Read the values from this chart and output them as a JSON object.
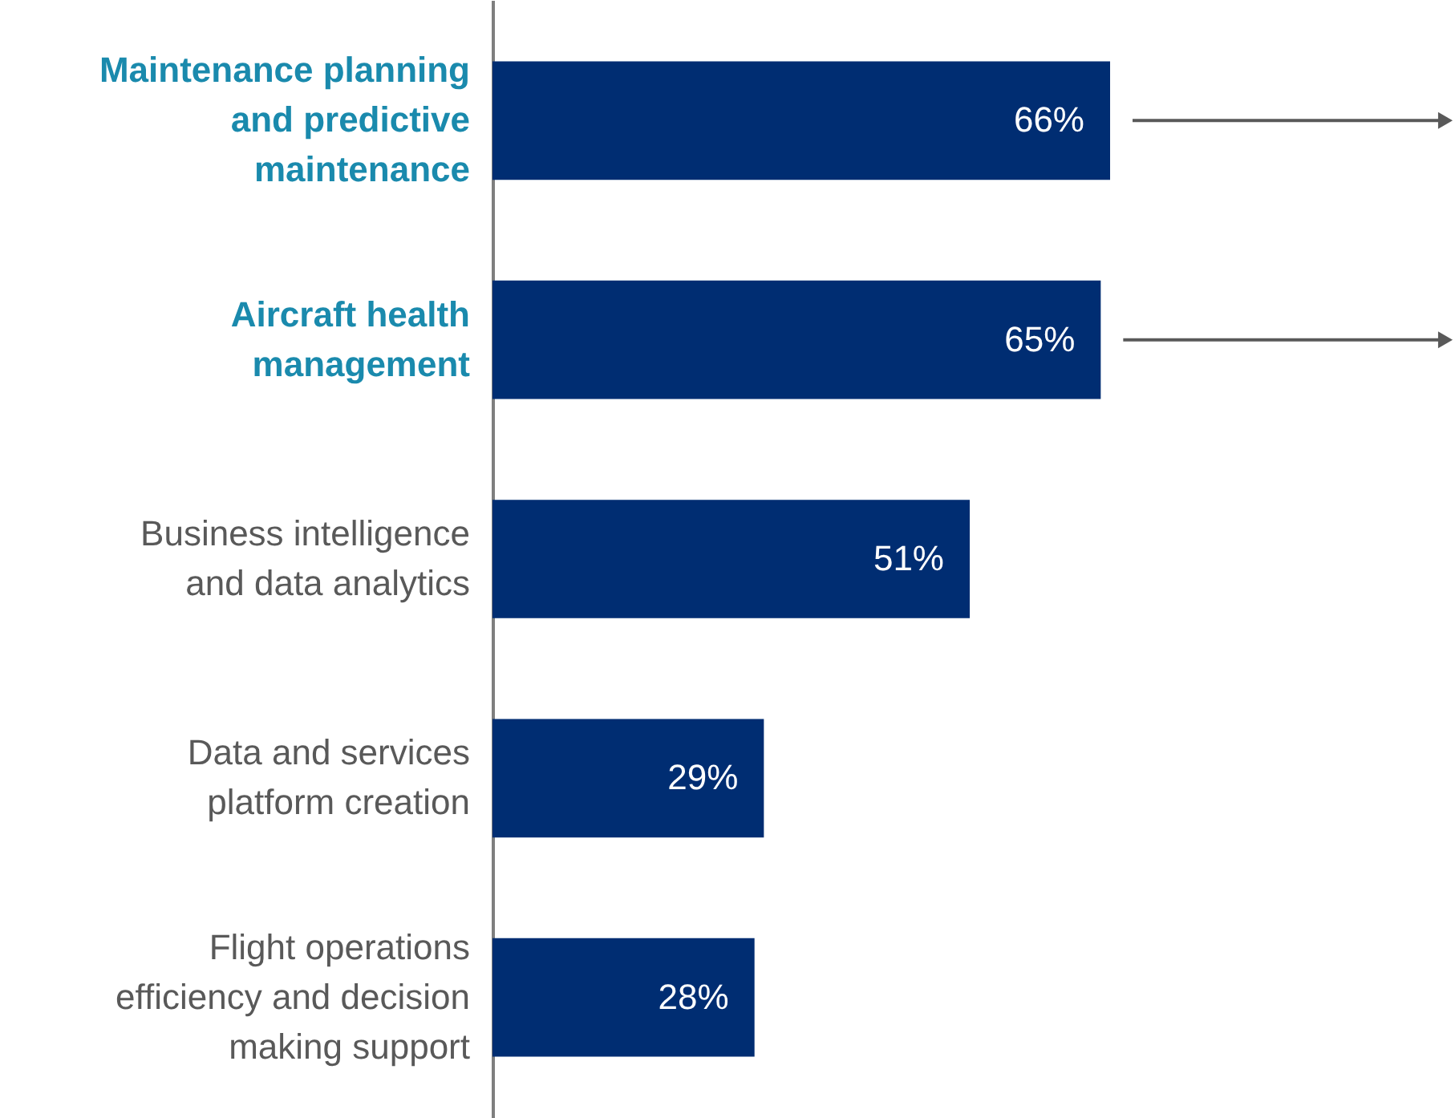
{
  "chart_data": {
    "type": "bar",
    "orientation": "horizontal",
    "categories": [
      "Maintenance planning and predictive maintenance",
      "Aircraft health management",
      "Business intelligence and data analytics",
      "Data and services platform creation",
      "Flight operations efficiency and decision making support"
    ],
    "values": [
      66,
      65,
      51,
      29,
      28
    ],
    "color": "#002d72",
    "value_labels": [
      "66%",
      "65%",
      "51%",
      "29%",
      "28%"
    ],
    "data_labels": true
  }
}
